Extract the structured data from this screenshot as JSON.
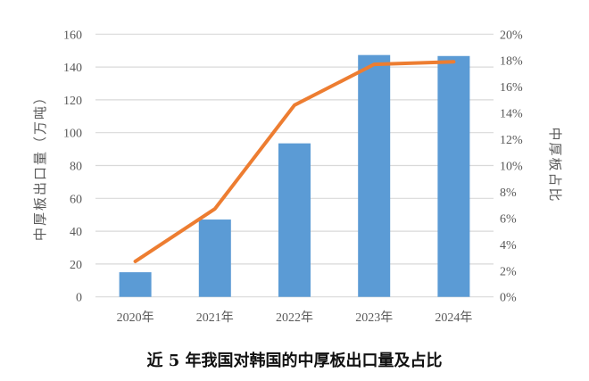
{
  "chart_data": {
    "type": "bar+line",
    "title": "近 5 年我国对韩国的中厚板出口量及占比",
    "categories": [
      "2020年",
      "2021年",
      "2022年",
      "2023年",
      "2024年"
    ],
    "ylabel": "中厚板出口量（万吨）",
    "y2label": "中厚板占比",
    "ylim": [
      0,
      160
    ],
    "yticks": [
      0,
      20,
      40,
      60,
      80,
      100,
      120,
      140,
      160
    ],
    "y2lim": [
      0,
      20
    ],
    "y2ticks": [
      "0%",
      "2%",
      "4%",
      "6%",
      "8%",
      "10%",
      "12%",
      "14%",
      "16%",
      "18%",
      "20%"
    ],
    "grid": true,
    "series": [
      {
        "type": "bar",
        "axis": "left",
        "color": "#5B9BD5",
        "values": [
          15.0,
          47.1,
          93.5,
          147.3,
          146.7
        ]
      },
      {
        "type": "line",
        "axis": "right",
        "color": "#ED7D31",
        "values": [
          2.7,
          6.7,
          14.6,
          17.7,
          17.9
        ]
      }
    ]
  }
}
